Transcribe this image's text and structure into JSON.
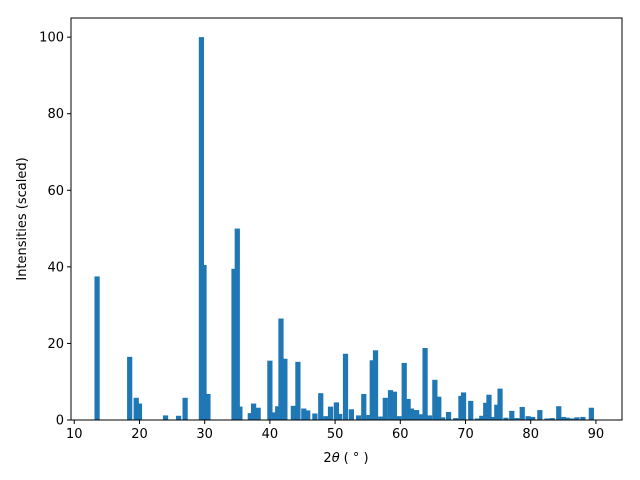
{
  "chart_data": {
    "type": "bar",
    "xlabel_prefix": "2",
    "xlabel_theta": "θ",
    "xlabel_unit": "( ° )",
    "ylabel": "Intensities (scaled)",
    "xlim": [
      9.5,
      94.0
    ],
    "ylim": [
      0,
      105
    ],
    "xticks": [
      10,
      20,
      30,
      40,
      50,
      60,
      70,
      80,
      90
    ],
    "yticks": [
      0,
      20,
      40,
      60,
      80,
      100
    ],
    "bar_width": 0.8,
    "color": "#1f77b4",
    "x": [
      13.5,
      18.5,
      19.5,
      20.0,
      24.0,
      26.0,
      27.0,
      29.5,
      29.9,
      30.5,
      34.5,
      35.0,
      35.4,
      37.0,
      37.5,
      38.2,
      40.0,
      40.5,
      41.2,
      41.7,
      42.3,
      43.6,
      44.3,
      45.2,
      45.8,
      46.9,
      47.8,
      48.6,
      49.3,
      50.2,
      50.7,
      51.6,
      52.5,
      53.6,
      54.4,
      55.2,
      55.7,
      56.2,
      57.0,
      57.7,
      58.5,
      59.1,
      59.8,
      60.6,
      61.2,
      61.7,
      62.5,
      63.2,
      63.8,
      64.5,
      65.3,
      65.9,
      66.5,
      67.4,
      68.5,
      69.3,
      69.7,
      70.8,
      71.8,
      72.5,
      73.1,
      73.6,
      74.2,
      74.8,
      75.3,
      76.2,
      77.1,
      77.9,
      78.7,
      79.6,
      80.3,
      81.4,
      82.5,
      83.3,
      84.3,
      85.0,
      85.6,
      86.3,
      87.1,
      88.0,
      89.3
    ]
  }
}
